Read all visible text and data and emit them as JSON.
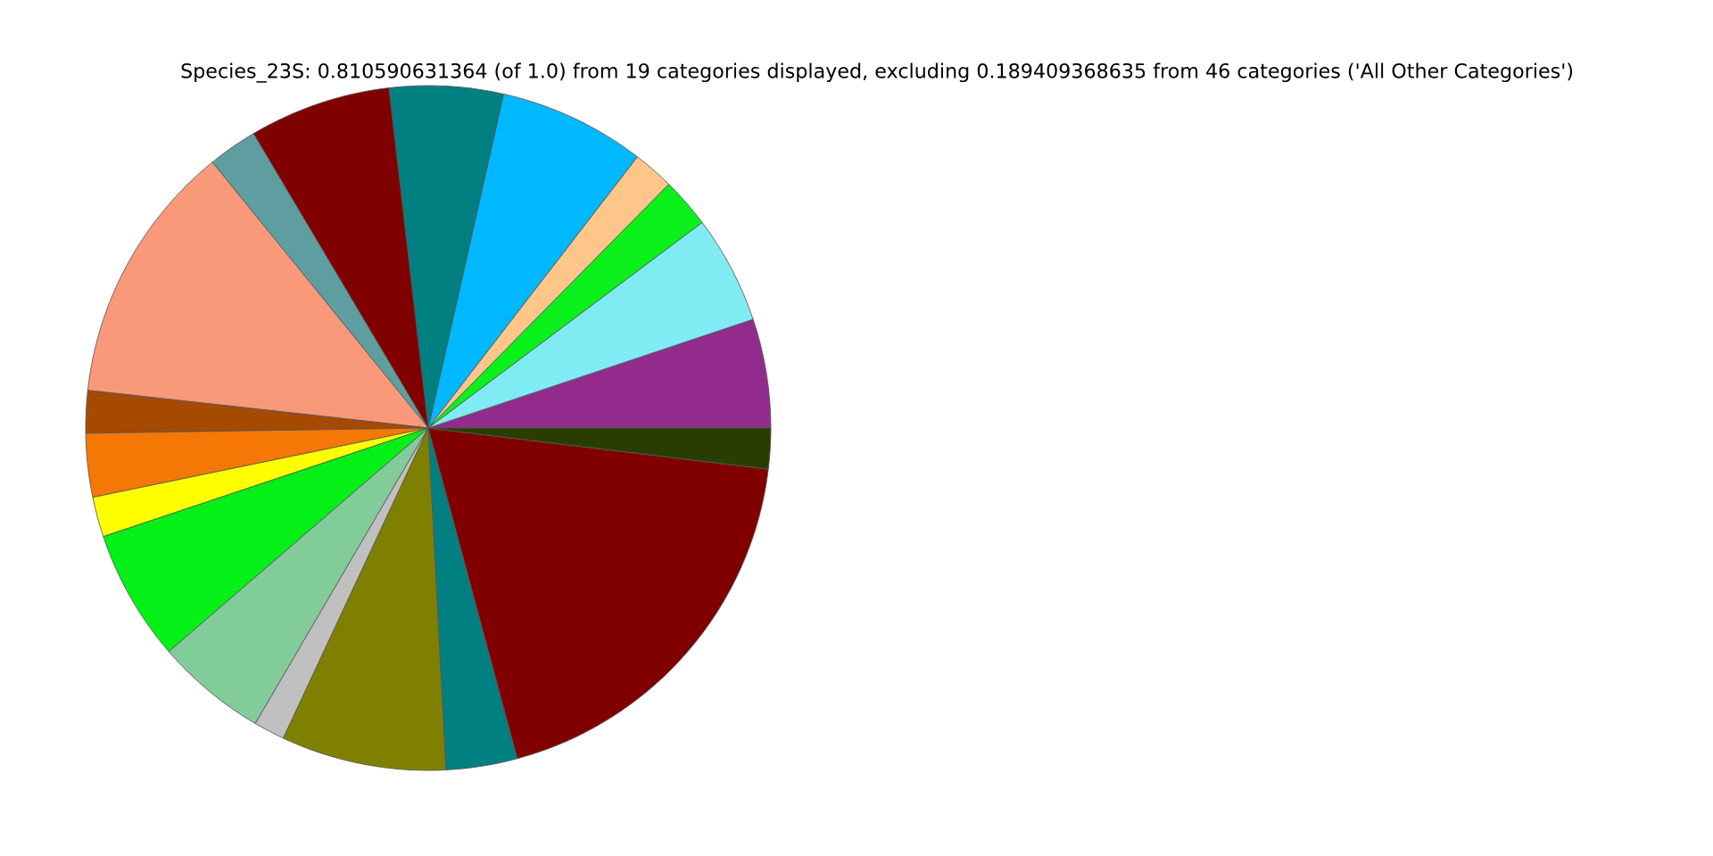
{
  "chart_data": {
    "type": "pie",
    "title": "Species_23S: 0.810590631364 (of 1.0) from 19 categories displayed, excluding 0.189409368635 from 46 categories ('All Other Categories')",
    "categories": [
      null,
      null,
      null,
      null,
      null,
      null,
      null,
      null,
      null,
      null,
      null,
      null,
      null,
      null,
      null,
      null,
      null,
      null,
      null
    ],
    "values": [
      5.14,
      5.11,
      2.36,
      1.94,
      6.92,
      5.36,
      6.69,
      2.33,
      12.39,
      2.0,
      3.0,
      1.89,
      6.19,
      5.25,
      1.47,
      7.78,
      3.36,
      18.89,
      1.92
    ],
    "colors": [
      "#922b8c",
      "#7fecf4",
      "#0af01a",
      "#ffc68a",
      "#00b8ff",
      "#008080",
      "#800000",
      "#5f9ea0",
      "#f9997a",
      "#a64a00",
      "#f57706",
      "#ffff00",
      "#04f016",
      "#82cc9a",
      "#c0c0c0",
      "#808000",
      "#008080",
      "#800000",
      "#2a3d00"
    ]
  }
}
